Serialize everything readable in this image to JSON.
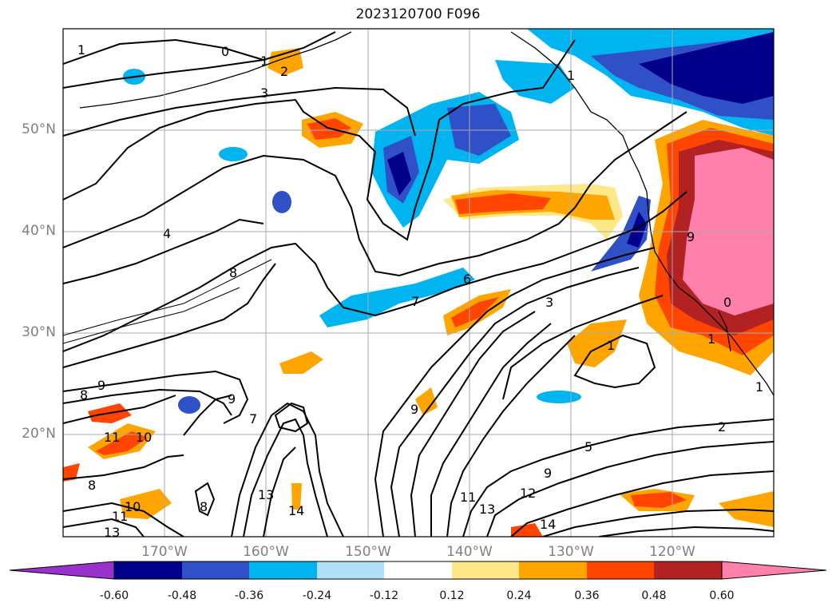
{
  "title": "2023120700 F096",
  "map": {
    "lat_labels": [
      "50°N",
      "40°N",
      "30°N",
      "20°N"
    ],
    "lon_labels": [
      "170°W",
      "160°W",
      "150°W",
      "140°W",
      "130°W",
      "120°W"
    ],
    "contour_labels": [
      "1",
      "0",
      "1",
      "2",
      "3",
      "4",
      "8",
      "6",
      "7",
      "3",
      "1",
      "0",
      "1",
      "9",
      "9",
      "7",
      "8",
      "9",
      "11",
      "10",
      "8",
      "11",
      "10",
      "13",
      "13",
      "14",
      "8",
      "9",
      "11",
      "12",
      "13",
      "14",
      "5",
      "2",
      "9",
      "1",
      "1"
    ]
  },
  "colorbar": {
    "tick_labels": [
      "-0.60",
      "-0.48",
      "-0.36",
      "-0.24",
      "-0.12",
      "0.12",
      "0.24",
      "0.36",
      "0.48",
      "0.60"
    ],
    "colors": [
      "#9932cc",
      "#00008b",
      "#3050c8",
      "#00b4f0",
      "#b0e0f8",
      "#ffffff",
      "#ffe88a",
      "#ffa500",
      "#ff4500",
      "#b22222",
      "#ff80aa"
    ]
  }
}
